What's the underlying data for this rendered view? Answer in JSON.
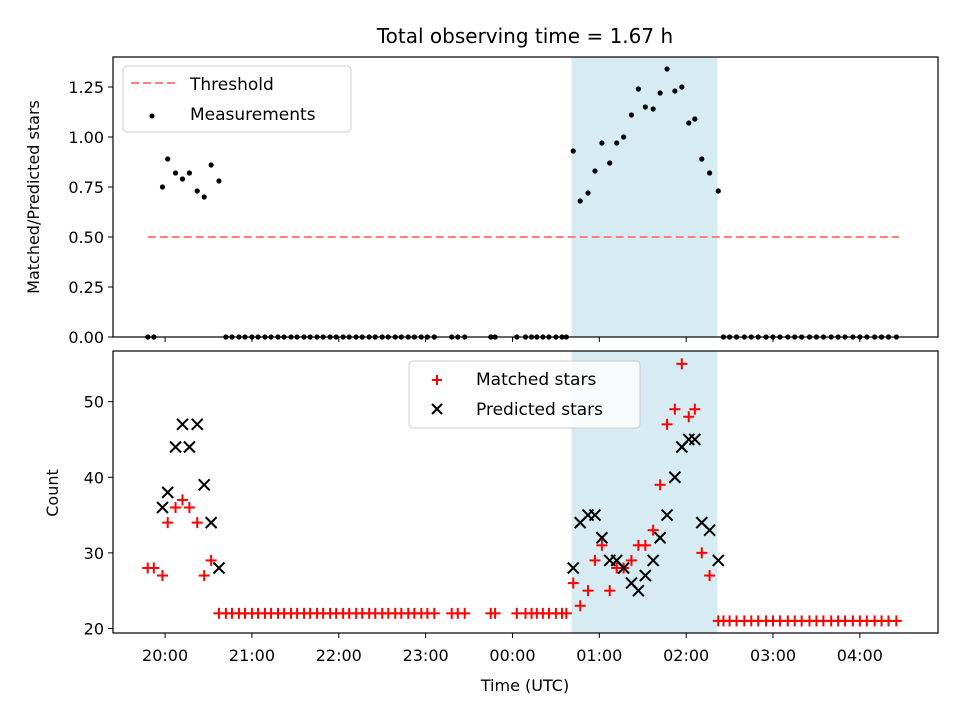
{
  "chart_data": [
    {
      "type": "scatter",
      "title": "Total observing time = 1.67 h",
      "xlabel": "",
      "ylabel": "Matched/Predicted stars",
      "ylim": [
        0,
        1.4
      ],
      "yticks": [
        "0.00",
        "0.25",
        "0.50",
        "0.75",
        "1.00",
        "1.25"
      ],
      "ytick_values": [
        0,
        0.25,
        0.5,
        0.75,
        1.0,
        1.25
      ],
      "xlim_hours": [
        19.4,
        28.9
      ],
      "shaded_span_hours": [
        24.68,
        26.36
      ],
      "shade_color": "#add8e6",
      "legend_position": "upper-left",
      "threshold": {
        "name": "Threshold",
        "value": 0.5,
        "x_range_hours": [
          19.8,
          28.45
        ],
        "color": "#ff7f7f",
        "style": "dashed"
      },
      "measurements": {
        "name": "Measurements",
        "color": "#000000",
        "x": [
          19.8,
          19.87,
          19.97,
          20.03,
          20.12,
          20.2,
          20.28,
          20.37,
          20.45,
          20.53,
          20.62,
          20.7,
          20.77,
          20.85,
          20.92,
          21.0,
          21.07,
          21.15,
          21.22,
          21.3,
          21.37,
          21.45,
          21.52,
          21.6,
          21.67,
          21.75,
          21.82,
          21.9,
          21.97,
          22.05,
          22.12,
          22.2,
          22.27,
          22.35,
          22.42,
          22.5,
          22.57,
          22.65,
          22.72,
          22.8,
          22.87,
          22.95,
          23.02,
          23.1,
          23.3,
          23.37,
          23.45,
          23.75,
          23.8,
          24.05,
          24.15,
          24.22,
          24.28,
          24.35,
          24.42,
          24.5,
          24.57,
          24.62,
          24.7,
          24.78,
          24.87,
          24.95,
          25.03,
          25.12,
          25.2,
          25.28,
          25.37,
          25.45,
          25.53,
          25.62,
          25.7,
          25.78,
          25.87,
          25.95,
          26.03,
          26.1,
          26.18,
          26.27,
          26.37,
          26.43,
          26.5,
          26.58,
          26.67,
          26.75,
          26.83,
          26.92,
          27.0,
          27.08,
          27.17,
          27.25,
          27.33,
          27.42,
          27.5,
          27.58,
          27.67,
          27.75,
          27.83,
          27.92,
          28.0,
          28.08,
          28.17,
          28.25,
          28.33,
          28.42
        ],
        "y": [
          0,
          0,
          0.75,
          0.89,
          0.82,
          0.79,
          0.82,
          0.73,
          0.7,
          0.86,
          0.78,
          0,
          0,
          0,
          0,
          0,
          0,
          0,
          0,
          0,
          0,
          0,
          0,
          0,
          0,
          0,
          0,
          0,
          0,
          0,
          0,
          0,
          0,
          0,
          0,
          0,
          0,
          0,
          0,
          0,
          0,
          0,
          0,
          0,
          0,
          0,
          0,
          0,
          0,
          0,
          0,
          0,
          0,
          0,
          0,
          0,
          0,
          0,
          0.93,
          0.68,
          0.72,
          0.83,
          0.97,
          0.87,
          0.97,
          1.0,
          1.11,
          1.24,
          1.15,
          1.14,
          1.22,
          1.34,
          1.23,
          1.25,
          1.07,
          1.09,
          0.89,
          0.82,
          0.73,
          0,
          0,
          0,
          0,
          0,
          0,
          0,
          0,
          0,
          0,
          0,
          0,
          0,
          0,
          0,
          0,
          0,
          0,
          0,
          0,
          0,
          0,
          0,
          0,
          0
        ]
      }
    },
    {
      "type": "scatter",
      "title": "",
      "xlabel": "Time (UTC)",
      "ylabel": "Count",
      "ylim": [
        19.4,
        56.7
      ],
      "yticks": [
        "20",
        "30",
        "40",
        "50"
      ],
      "ytick_values": [
        20,
        30,
        40,
        50
      ],
      "xlim_hours": [
        19.4,
        28.9
      ],
      "xticks": [
        "20:00",
        "21:00",
        "22:00",
        "23:00",
        "00:00",
        "01:00",
        "02:00",
        "03:00",
        "04:00"
      ],
      "xtick_hours": [
        20,
        21,
        22,
        23,
        24,
        25,
        26,
        27,
        28
      ],
      "shaded_span_hours": [
        24.68,
        26.36
      ],
      "legend_position": "upper-center",
      "series": [
        {
          "name": "Matched stars",
          "marker": "plus",
          "color": "#ff0000",
          "x": [
            19.8,
            19.87,
            19.97,
            20.03,
            20.12,
            20.2,
            20.28,
            20.37,
            20.45,
            20.53,
            20.62,
            20.7,
            20.77,
            20.85,
            20.92,
            21.0,
            21.07,
            21.15,
            21.22,
            21.3,
            21.37,
            21.45,
            21.52,
            21.6,
            21.67,
            21.75,
            21.82,
            21.9,
            21.97,
            22.05,
            22.12,
            22.2,
            22.27,
            22.35,
            22.42,
            22.5,
            22.57,
            22.65,
            22.72,
            22.8,
            22.87,
            22.95,
            23.02,
            23.1,
            23.3,
            23.37,
            23.45,
            23.75,
            23.8,
            24.05,
            24.15,
            24.22,
            24.28,
            24.35,
            24.42,
            24.5,
            24.57,
            24.62,
            24.7,
            24.78,
            24.87,
            24.95,
            25.03,
            25.12,
            25.2,
            25.28,
            25.37,
            25.45,
            25.53,
            25.62,
            25.7,
            25.78,
            25.87,
            25.95,
            26.03,
            26.1,
            26.18,
            26.27,
            26.37,
            26.43,
            26.5,
            26.58,
            26.67,
            26.75,
            26.83,
            26.92,
            27.0,
            27.08,
            27.17,
            27.25,
            27.33,
            27.42,
            27.5,
            27.58,
            27.67,
            27.75,
            27.83,
            27.92,
            28.0,
            28.08,
            28.17,
            28.25,
            28.33,
            28.42
          ],
          "y": [
            28,
            28,
            27,
            34,
            36,
            37,
            36,
            34,
            27,
            29,
            22,
            22,
            22,
            22,
            22,
            22,
            22,
            22,
            22,
            22,
            22,
            22,
            22,
            22,
            22,
            22,
            22,
            22,
            22,
            22,
            22,
            22,
            22,
            22,
            22,
            22,
            22,
            22,
            22,
            22,
            22,
            22,
            22,
            22,
            22,
            22,
            22,
            22,
            22,
            22,
            22,
            22,
            22,
            22,
            22,
            22,
            22,
            22,
            26,
            23,
            25,
            29,
            31,
            25,
            28,
            28,
            29,
            31,
            31,
            33,
            39,
            47,
            49,
            55,
            48,
            49,
            30,
            27,
            21,
            21,
            21,
            21,
            21,
            21,
            21,
            21,
            21,
            21,
            21,
            21,
            21,
            21,
            21,
            21,
            21,
            21,
            21,
            21,
            21,
            21,
            21,
            21,
            21,
            21
          ]
        },
        {
          "name": "Predicted stars",
          "marker": "x",
          "color": "#000000",
          "x": [
            19.97,
            20.03,
            20.12,
            20.2,
            20.28,
            20.37,
            20.45,
            20.53,
            20.62,
            24.7,
            24.78,
            24.87,
            24.95,
            25.03,
            25.12,
            25.2,
            25.28,
            25.37,
            25.45,
            25.53,
            25.62,
            25.7,
            25.78,
            25.87,
            25.95,
            26.03,
            26.1,
            26.18,
            26.27,
            26.37
          ],
          "y": [
            36,
            38,
            44,
            47,
            44,
            47,
            39,
            34,
            28,
            28,
            34,
            35,
            35,
            32,
            29,
            29,
            28,
            26,
            25,
            27,
            29,
            32,
            35,
            40,
            44,
            45,
            45,
            34,
            33,
            29
          ]
        }
      ]
    }
  ]
}
